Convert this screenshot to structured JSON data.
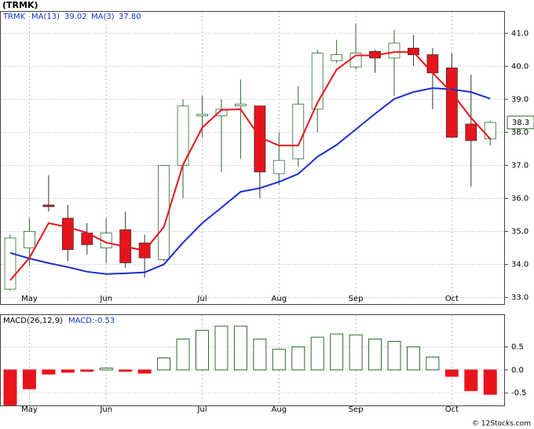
{
  "chart_data": [
    {
      "type": "candlestick",
      "title": "(TRMK)",
      "name": "TRMK",
      "categories": [
        null,
        "May",
        null,
        null,
        null,
        "Jun",
        null,
        null,
        null,
        null,
        "Jul",
        null,
        null,
        null,
        "Aug",
        null,
        null,
        null,
        "Sep",
        null,
        null,
        null,
        null,
        "Oct",
        null,
        null
      ],
      "open": [
        33.25,
        34.5,
        35.8,
        35.4,
        34.95,
        34.5,
        35.05,
        34.65,
        34.15,
        37.0,
        38.5,
        38.5,
        38.8,
        38.8,
        36.75,
        37.2,
        38.7,
        40.17,
        39.98,
        40.45,
        40.25,
        40.55,
        40.35,
        39.95,
        38.25,
        37.8
      ],
      "high": [
        34.9,
        35.4,
        36.7,
        35.8,
        35.25,
        35.4,
        35.6,
        34.9,
        37.0,
        39.0,
        39.1,
        39.0,
        39.6,
        38.8,
        38.0,
        39.4,
        40.5,
        40.8,
        41.3,
        40.5,
        41.1,
        40.95,
        40.55,
        40.4,
        39.75,
        38.35
      ],
      "low": [
        33.2,
        33.95,
        35.6,
        34.1,
        34.3,
        34.05,
        33.9,
        33.6,
        34.1,
        36.0,
        37.85,
        36.8,
        37.2,
        36.0,
        36.4,
        36.95,
        38.0,
        40.1,
        39.9,
        39.8,
        39.1,
        40.0,
        38.7,
        37.85,
        36.35,
        37.6
      ],
      "close": [
        34.8,
        35.0,
        35.75,
        34.45,
        34.6,
        34.95,
        34.05,
        34.2,
        37.0,
        38.8,
        38.55,
        38.7,
        38.85,
        36.8,
        37.15,
        38.85,
        40.4,
        40.35,
        40.4,
        40.25,
        40.7,
        40.35,
        39.8,
        37.85,
        37.75,
        38.3
      ],
      "up_color": "#ffffff",
      "up_border": "#2e6b2e",
      "down_color": "#e8141c",
      "series": [
        {
          "name": "MA(13)",
          "legend_value": "39.02",
          "color": "#1a2fd0",
          "values": [
            34.35,
            34.18,
            34.04,
            33.92,
            33.78,
            33.71,
            33.73,
            33.76,
            34.0,
            34.66,
            35.25,
            35.72,
            36.2,
            36.31,
            36.5,
            36.74,
            37.26,
            37.62,
            38.09,
            38.56,
            39.01,
            39.22,
            39.34,
            39.3,
            39.22,
            39.02
          ]
        },
        {
          "name": "MA(3)",
          "legend_value": "37.80",
          "color": "#e8141c",
          "values": [
            33.52,
            34.2,
            35.25,
            35.13,
            34.96,
            34.66,
            34.54,
            34.42,
            35.13,
            37.02,
            38.14,
            38.68,
            38.7,
            37.85,
            37.6,
            37.6,
            38.9,
            39.9,
            40.33,
            40.33,
            40.43,
            40.43,
            39.8,
            39.2,
            38.44,
            37.8
          ]
        }
      ],
      "last_label": "38.3",
      "ylim": [
        32.8,
        41.65
      ],
      "yticks": [
        {
          "value": 33,
          "label": "33.0"
        },
        {
          "value": 34,
          "label": "34.0"
        },
        {
          "value": 35,
          "label": "35.0"
        },
        {
          "value": 36,
          "label": "36.0"
        },
        {
          "value": 37,
          "label": "37.0"
        },
        {
          "value": 38,
          "label": "38.0"
        },
        {
          "value": 39,
          "label": "39.0"
        },
        {
          "value": 40,
          "label": "40.0"
        },
        {
          "value": 41,
          "label": "41.0"
        }
      ],
      "grid": true
    },
    {
      "type": "bar",
      "title": "MACD(26,12,9)",
      "subtitle": "MACD:-0.53",
      "categories": [
        null,
        "May",
        null,
        null,
        null,
        "Jun",
        null,
        null,
        null,
        null,
        "Jul",
        null,
        null,
        null,
        "Aug",
        null,
        null,
        null,
        "Sep",
        null,
        null,
        null,
        null,
        "Oct",
        null,
        null
      ],
      "values": [
        -0.76,
        -0.41,
        -0.09,
        -0.05,
        -0.03,
        0.04,
        -0.03,
        -0.07,
        0.26,
        0.67,
        0.86,
        0.95,
        0.95,
        0.67,
        0.45,
        0.5,
        0.71,
        0.78,
        0.76,
        0.67,
        0.62,
        0.5,
        0.28,
        -0.14,
        -0.45,
        -0.53
      ],
      "positive_color": "#2e6b2e",
      "negative_color": "#e8141c",
      "ylim": [
        -0.77,
        1.19
      ],
      "yticks": [
        {
          "value": 0.5,
          "label": "0.5"
        },
        {
          "value": 0,
          "label": "0.0"
        },
        {
          "value": -0.5,
          "label": "-0.5"
        }
      ],
      "grid": true
    },
    {
      "type": "text",
      "watermark": "© 12Stocks.com"
    }
  ]
}
